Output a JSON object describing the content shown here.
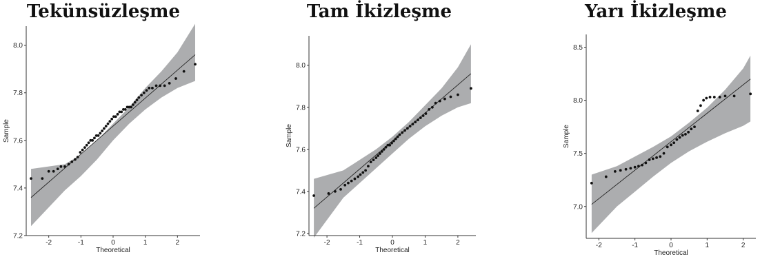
{
  "chart_data": [
    {
      "type": "scatter",
      "subtype": "qq-plot",
      "title": "Tekünsüzleşme",
      "xlabel": "Theoretical",
      "ylabel": "Sample",
      "xlim": [
        -2.7,
        2.7
      ],
      "ylim": [
        7.2,
        8.08
      ],
      "xticks": [
        -2,
        -1,
        0,
        1,
        2
      ],
      "yticks": [
        7.2,
        7.4,
        7.6,
        7.8,
        8.0
      ],
      "grid": false,
      "line": {
        "x": [
          -2.55,
          2.55
        ],
        "y": [
          7.36,
          7.96
        ]
      },
      "band": {
        "x": [
          -2.55,
          -1.5,
          -1.0,
          -0.5,
          0,
          0.5,
          1.0,
          1.5,
          2.0,
          2.55
        ],
        "upper": [
          7.48,
          7.5,
          7.54,
          7.6,
          7.67,
          7.74,
          7.82,
          7.89,
          7.97,
          8.09
        ],
        "lower": [
          7.24,
          7.39,
          7.45,
          7.52,
          7.6,
          7.67,
          7.73,
          7.78,
          7.82,
          7.85
        ]
      },
      "x": [
        -2.55,
        -2.2,
        -2.0,
        -1.85,
        -1.72,
        -1.62,
        -1.5,
        -1.38,
        -1.28,
        -1.18,
        -1.1,
        -1.02,
        -0.95,
        -0.88,
        -0.82,
        -0.76,
        -0.7,
        -0.64,
        -0.58,
        -0.52,
        -0.46,
        -0.4,
        -0.34,
        -0.28,
        -0.22,
        -0.16,
        -0.1,
        -0.04,
        0.02,
        0.08,
        0.14,
        0.2,
        0.26,
        0.32,
        0.38,
        0.44,
        0.5,
        0.56,
        0.62,
        0.68,
        0.74,
        0.8,
        0.88,
        0.96,
        1.04,
        1.12,
        1.22,
        1.34,
        1.46,
        1.6,
        1.75,
        1.95,
        2.2,
        2.55
      ],
      "values": [
        7.44,
        7.44,
        7.47,
        7.47,
        7.48,
        7.49,
        7.49,
        7.5,
        7.51,
        7.52,
        7.53,
        7.55,
        7.56,
        7.57,
        7.58,
        7.59,
        7.6,
        7.6,
        7.61,
        7.62,
        7.62,
        7.63,
        7.64,
        7.65,
        7.66,
        7.67,
        7.68,
        7.69,
        7.7,
        7.7,
        7.71,
        7.72,
        7.72,
        7.73,
        7.73,
        7.74,
        7.74,
        7.74,
        7.75,
        7.76,
        7.77,
        7.78,
        7.79,
        7.8,
        7.81,
        7.82,
        7.82,
        7.83,
        7.83,
        7.83,
        7.84,
        7.86,
        7.89,
        7.92
      ]
    },
    {
      "type": "scatter",
      "subtype": "qq-plot",
      "title": "Tam İkizleşme",
      "xlabel": "Theoretical",
      "ylabel": "Sample",
      "xlim": [
        -2.55,
        2.55
      ],
      "ylim": [
        7.19,
        8.14
      ],
      "xticks": [
        -2,
        -1,
        0,
        1,
        2
      ],
      "yticks": [
        7.2,
        7.4,
        7.6,
        7.8,
        8.0
      ],
      "grid": false,
      "line": {
        "x": [
          -2.4,
          2.4
        ],
        "y": [
          7.32,
          7.96
        ]
      },
      "band": {
        "x": [
          -2.4,
          -1.5,
          -1.0,
          -0.5,
          0,
          0.5,
          1.0,
          1.5,
          2.0,
          2.4
        ],
        "upper": [
          7.46,
          7.5,
          7.55,
          7.6,
          7.66,
          7.73,
          7.81,
          7.89,
          7.99,
          8.1
        ],
        "lower": [
          7.18,
          7.37,
          7.44,
          7.51,
          7.58,
          7.65,
          7.71,
          7.76,
          7.8,
          7.82
        ]
      },
      "x": [
        -2.4,
        -1.95,
        -1.75,
        -1.58,
        -1.45,
        -1.35,
        -1.25,
        -1.15,
        -1.05,
        -0.98,
        -0.9,
        -0.82,
        -0.74,
        -0.66,
        -0.58,
        -0.5,
        -0.44,
        -0.38,
        -0.32,
        -0.26,
        -0.2,
        -0.14,
        -0.08,
        -0.02,
        0.04,
        0.1,
        0.16,
        0.22,
        0.3,
        0.38,
        0.46,
        0.54,
        0.62,
        0.7,
        0.78,
        0.86,
        0.94,
        1.02,
        1.12,
        1.22,
        1.32,
        1.45,
        1.6,
        1.78,
        2.0,
        2.4
      ],
      "values": [
        7.38,
        7.39,
        7.4,
        7.41,
        7.43,
        7.44,
        7.45,
        7.46,
        7.47,
        7.48,
        7.49,
        7.5,
        7.52,
        7.54,
        7.55,
        7.56,
        7.57,
        7.58,
        7.59,
        7.6,
        7.61,
        7.62,
        7.62,
        7.63,
        7.64,
        7.65,
        7.66,
        7.67,
        7.68,
        7.69,
        7.7,
        7.71,
        7.72,
        7.73,
        7.74,
        7.75,
        7.76,
        7.77,
        7.79,
        7.8,
        7.82,
        7.83,
        7.84,
        7.85,
        7.86,
        7.89
      ]
    },
    {
      "type": "scatter",
      "subtype": "qq-plot",
      "title": "Yarı İkizleşme",
      "xlabel": "Theoretical",
      "ylabel": "Sample",
      "xlim": [
        -2.35,
        2.35
      ],
      "ylim": [
        6.7,
        8.62
      ],
      "xticks": [
        -2,
        -1,
        0,
        1,
        2
      ],
      "yticks": [
        7.0,
        7.5,
        8.0,
        8.5
      ],
      "grid": false,
      "line": {
        "x": [
          -2.2,
          2.2
        ],
        "y": [
          7.02,
          8.2
        ]
      },
      "band": {
        "x": [
          -2.2,
          -1.5,
          -1.0,
          -0.5,
          0,
          0.5,
          1.0,
          1.5,
          2.0,
          2.2
        ],
        "upper": [
          7.3,
          7.38,
          7.47,
          7.56,
          7.66,
          7.79,
          7.93,
          8.1,
          8.3,
          8.42
        ],
        "lower": [
          6.75,
          7.0,
          7.14,
          7.28,
          7.41,
          7.52,
          7.61,
          7.69,
          7.76,
          7.8
        ]
      },
      "x": [
        -2.2,
        -1.8,
        -1.55,
        -1.4,
        -1.25,
        -1.12,
        -1.0,
        -0.9,
        -0.8,
        -0.7,
        -0.6,
        -0.5,
        -0.4,
        -0.3,
        -0.2,
        -0.1,
        0.0,
        0.08,
        0.16,
        0.24,
        0.32,
        0.4,
        0.48,
        0.56,
        0.65,
        0.74,
        0.82,
        0.9,
        0.98,
        1.08,
        1.2,
        1.35,
        1.5,
        1.75,
        2.2
      ],
      "values": [
        7.22,
        7.28,
        7.33,
        7.34,
        7.35,
        7.36,
        7.37,
        7.38,
        7.39,
        7.41,
        7.44,
        7.45,
        7.46,
        7.47,
        7.5,
        7.56,
        7.58,
        7.6,
        7.63,
        7.65,
        7.67,
        7.68,
        7.7,
        7.73,
        7.75,
        7.9,
        7.95,
        8.0,
        8.02,
        8.03,
        8.03,
        8.03,
        8.04,
        8.04,
        8.06
      ]
    }
  ]
}
